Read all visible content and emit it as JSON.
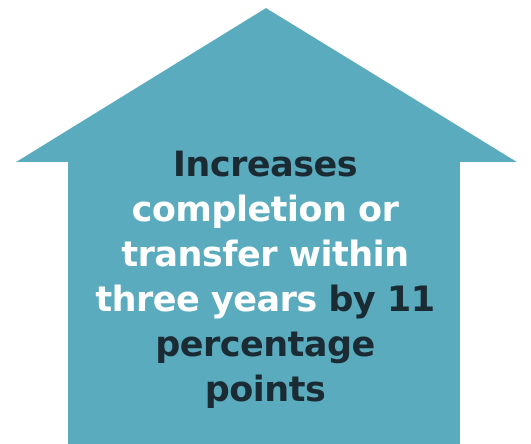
{
  "graphic": {
    "colors": {
      "arrow_fill": "#5aabbd",
      "text_dark": "#1b2b33",
      "text_light": "#ffffff",
      "background": "#ffffff"
    },
    "message": {
      "line1_dark": "Increases",
      "line2_light": "completion or",
      "line3_light": "transfer within",
      "line4_light": "three years",
      "line4_dark": "by 11",
      "line5_dark": "percentage points"
    }
  }
}
